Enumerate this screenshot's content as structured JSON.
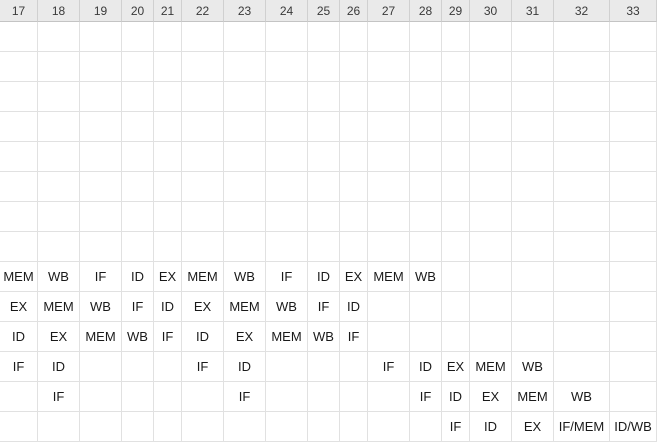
{
  "columns": [
    "17",
    "18",
    "19",
    "20",
    "21",
    "22",
    "23",
    "24",
    "25",
    "26",
    "27",
    "28",
    "29",
    "30",
    "31",
    "32",
    "33"
  ],
  "rows": [
    [
      "",
      "",
      "",
      "",
      "",
      "",
      "",
      "",
      "",
      "",
      "",
      "",
      "",
      "",
      "",
      "",
      ""
    ],
    [
      "",
      "",
      "",
      "",
      "",
      "",
      "",
      "",
      "",
      "",
      "",
      "",
      "",
      "",
      "",
      "",
      ""
    ],
    [
      "",
      "",
      "",
      "",
      "",
      "",
      "",
      "",
      "",
      "",
      "",
      "",
      "",
      "",
      "",
      "",
      ""
    ],
    [
      "",
      "",
      "",
      "",
      "",
      "",
      "",
      "",
      "",
      "",
      "",
      "",
      "",
      "",
      "",
      "",
      ""
    ],
    [
      "",
      "",
      "",
      "",
      "",
      "",
      "",
      "",
      "",
      "",
      "",
      "",
      "",
      "",
      "",
      "",
      ""
    ],
    [
      "",
      "",
      "",
      "",
      "",
      "",
      "",
      "",
      "",
      "",
      "",
      "",
      "",
      "",
      "",
      "",
      ""
    ],
    [
      "",
      "",
      "",
      "",
      "",
      "",
      "",
      "",
      "",
      "",
      "",
      "",
      "",
      "",
      "",
      "",
      ""
    ],
    [
      "",
      "",
      "",
      "",
      "",
      "",
      "",
      "",
      "",
      "",
      "",
      "",
      "",
      "",
      "",
      "",
      ""
    ],
    [
      "MEM",
      "WB",
      "IF",
      "ID",
      "EX",
      "MEM",
      "WB",
      "IF",
      "ID",
      "EX",
      "MEM",
      "WB",
      "",
      "",
      "",
      "",
      ""
    ],
    [
      "EX",
      "MEM",
      "WB",
      "IF",
      "ID",
      "EX",
      "MEM",
      "WB",
      "IF",
      "ID",
      "",
      "",
      "",
      "",
      "",
      "",
      ""
    ],
    [
      "ID",
      "EX",
      "MEM",
      "WB",
      "IF",
      "ID",
      "EX",
      "MEM",
      "WB",
      "IF",
      "",
      "",
      "",
      "",
      "",
      "",
      ""
    ],
    [
      "IF",
      "ID",
      "",
      "",
      "",
      "IF",
      "ID",
      "",
      "",
      "",
      "IF",
      "ID",
      "EX",
      "MEM",
      "WB",
      "",
      ""
    ],
    [
      "",
      "IF",
      "",
      "",
      "",
      "",
      "IF",
      "",
      "",
      "",
      "",
      "IF",
      "ID",
      "EX",
      "MEM",
      "WB",
      ""
    ],
    [
      "",
      "",
      "",
      "",
      "",
      "",
      "",
      "",
      "",
      "",
      "",
      "",
      "IF",
      "ID",
      "EX",
      "IF/MEM",
      "ID/WB"
    ]
  ]
}
